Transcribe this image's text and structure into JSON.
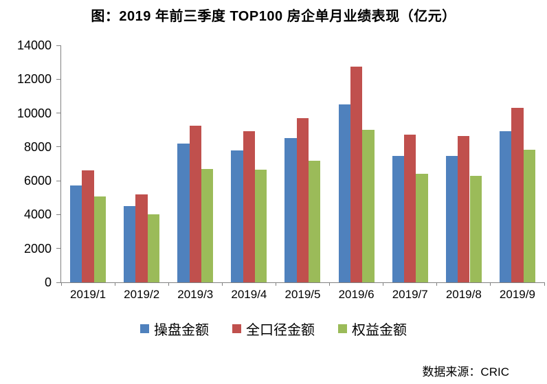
{
  "title": "图：2019 年前三季度 TOP100 房企单月业绩表现（亿元）",
  "source": "数据来源：CRIC",
  "colors": {
    "series_blue": "#4F81BD",
    "series_red": "#C0504D",
    "series_green": "#9BBB59",
    "axis": "#808080",
    "text": "#000000"
  },
  "chart_data": {
    "type": "bar",
    "title": "图：2019 年前三季度 TOP100 房企单月业绩表现（亿元）",
    "categories": [
      "2019/1",
      "2019/2",
      "2019/3",
      "2019/4",
      "2019/5",
      "2019/6",
      "2019/7",
      "2019/8",
      "2019/9"
    ],
    "series": [
      {
        "name": "操盘金额",
        "color": "#4F81BD",
        "values": [
          5740,
          4520,
          8180,
          7800,
          8540,
          10520,
          7480,
          7480,
          8940
        ]
      },
      {
        "name": "全口径金额",
        "color": "#C0504D",
        "values": [
          6620,
          5210,
          9270,
          8940,
          9710,
          12750,
          8740,
          8660,
          10320
        ]
      },
      {
        "name": "权益金额",
        "color": "#9BBB59",
        "values": [
          5060,
          4000,
          6680,
          6640,
          7200,
          9020,
          6430,
          6310,
          7850
        ]
      }
    ],
    "xlabel": "",
    "ylabel": "",
    "ylim": [
      0,
      14000
    ],
    "ytick_interval": 2000,
    "ytick_labels": [
      "0",
      "2000",
      "4000",
      "6000",
      "8000",
      "10000",
      "12000",
      "14000"
    ],
    "grid": false,
    "legend_position": "bottom",
    "annotation": "数据来源：CRIC"
  }
}
